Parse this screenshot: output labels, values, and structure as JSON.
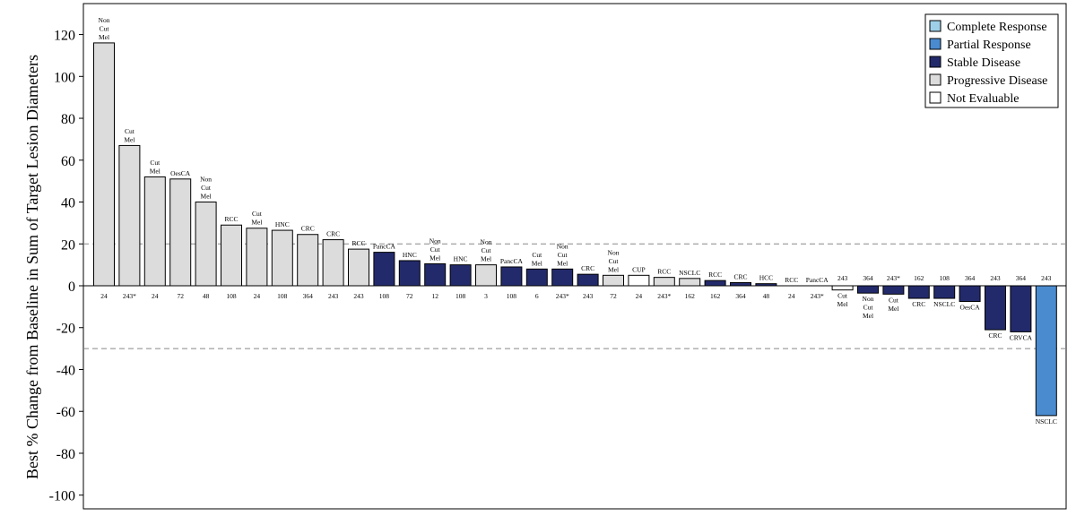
{
  "chart_data": {
    "type": "bar",
    "ylabel": "Best % Change from Baseline in Sum of Target Lesion Diameters",
    "ylim": [
      -105,
      133
    ],
    "yticks": [
      120,
      100,
      80,
      60,
      40,
      20,
      0,
      -20,
      -40,
      -60,
      -80,
      -100
    ],
    "reference_lines": [
      20,
      -30
    ],
    "grid": false,
    "legend_position": "top-right",
    "legend": [
      {
        "key": "CR",
        "label": "Complete Response",
        "color": "#9ecfe8"
      },
      {
        "key": "PR",
        "label": "Partial Response",
        "color": "#4a8bd0"
      },
      {
        "key": "SD",
        "label": "Stable Disease",
        "color": "#232a6b"
      },
      {
        "key": "PD",
        "label": "Progressive Disease",
        "color": "#dcdcdc"
      },
      {
        "key": "NE",
        "label": "Not Evaluable",
        "color": "#ffffff"
      }
    ],
    "bars": [
      {
        "value": 116,
        "dose": "24",
        "tumor": [
          "Non",
          "Cut",
          "Mel"
        ],
        "response": "PD"
      },
      {
        "value": 67,
        "dose": "243*",
        "tumor": [
          "Cut",
          "Mel"
        ],
        "response": "PD"
      },
      {
        "value": 52,
        "dose": "24",
        "tumor": [
          "Cut",
          "Mel"
        ],
        "response": "PD"
      },
      {
        "value": 51,
        "dose": "72",
        "tumor": [
          "OesCA"
        ],
        "response": "PD"
      },
      {
        "value": 40,
        "dose": "48",
        "tumor": [
          "Non",
          "Cut",
          "Mel"
        ],
        "response": "PD"
      },
      {
        "value": 29,
        "dose": "108",
        "tumor": [
          "RCC"
        ],
        "response": "PD"
      },
      {
        "value": 27.5,
        "dose": "24",
        "tumor": [
          "Cut",
          "Mel"
        ],
        "response": "PD"
      },
      {
        "value": 26.5,
        "dose": "108",
        "tumor": [
          "HNC"
        ],
        "response": "PD"
      },
      {
        "value": 24.5,
        "dose": "364",
        "tumor": [
          "CRC"
        ],
        "response": "PD"
      },
      {
        "value": 22,
        "dose": "243",
        "tumor": [
          "CRC"
        ],
        "response": "PD"
      },
      {
        "value": 17.5,
        "dose": "243",
        "tumor": [
          "RCC"
        ],
        "response": "PD"
      },
      {
        "value": 16,
        "dose": "108",
        "tumor": [
          "PancCA"
        ],
        "response": "SD"
      },
      {
        "value": 12,
        "dose": "72",
        "tumor": [
          "HNC"
        ],
        "response": "SD"
      },
      {
        "value": 10.5,
        "dose": "12",
        "tumor": [
          "Non",
          "Cut",
          "Mel"
        ],
        "response": "SD"
      },
      {
        "value": 10,
        "dose": "108",
        "tumor": [
          "HNC"
        ],
        "response": "SD"
      },
      {
        "value": 10,
        "dose": "3",
        "tumor": [
          "Non",
          "Cut",
          "Mel"
        ],
        "response": "PD"
      },
      {
        "value": 9,
        "dose": "108",
        "tumor": [
          "PancCA"
        ],
        "response": "SD"
      },
      {
        "value": 8,
        "dose": "6",
        "tumor": [
          "Cut",
          "Mel"
        ],
        "response": "SD"
      },
      {
        "value": 8,
        "dose": "243*",
        "tumor": [
          "Non",
          "Cut",
          "Mel"
        ],
        "response": "SD"
      },
      {
        "value": 5.5,
        "dose": "243",
        "tumor": [
          "CRC"
        ],
        "response": "SD"
      },
      {
        "value": 5,
        "dose": "72",
        "tumor": [
          "Non",
          "Cut",
          "Mel"
        ],
        "response": "PD"
      },
      {
        "value": 5,
        "dose": "24",
        "tumor": [
          "CUP"
        ],
        "response": "NE"
      },
      {
        "value": 4,
        "dose": "243*",
        "tumor": [
          "RCC"
        ],
        "response": "PD"
      },
      {
        "value": 3.5,
        "dose": "162",
        "tumor": [
          "NSCLC"
        ],
        "response": "PD"
      },
      {
        "value": 2.5,
        "dose": "162",
        "tumor": [
          "RCC"
        ],
        "response": "SD"
      },
      {
        "value": 1.5,
        "dose": "364",
        "tumor": [
          "CRC"
        ],
        "response": "SD"
      },
      {
        "value": 1,
        "dose": "48",
        "tumor": [
          "HCC"
        ],
        "response": "SD"
      },
      {
        "value": 0,
        "dose": "24",
        "tumor": [
          "RCC"
        ],
        "response": "SD"
      },
      {
        "value": 0,
        "dose": "243*",
        "tumor": [
          "PancCA"
        ],
        "response": "SD"
      },
      {
        "value": -2,
        "dose": "243",
        "tumor": [
          "Cut",
          "Mel"
        ],
        "response": "NE"
      },
      {
        "value": -3.5,
        "dose": "364",
        "tumor": [
          "Non",
          "Cut",
          "Mel"
        ],
        "response": "SD"
      },
      {
        "value": -4,
        "dose": "243*",
        "tumor": [
          "Cut",
          "Mel"
        ],
        "response": "SD"
      },
      {
        "value": -6,
        "dose": "162",
        "tumor": [
          "CRC"
        ],
        "response": "SD"
      },
      {
        "value": -6,
        "dose": "108",
        "tumor": [
          "NSCLC"
        ],
        "response": "SD"
      },
      {
        "value": -7.5,
        "dose": "364",
        "tumor": [
          "OesCA"
        ],
        "response": "SD"
      },
      {
        "value": -21,
        "dose": "243",
        "tumor": [
          "CRC"
        ],
        "response": "SD"
      },
      {
        "value": -22,
        "dose": "364",
        "tumor": [
          "CRVCA"
        ],
        "response": "SD"
      },
      {
        "value": -62,
        "dose": "243",
        "tumor": [
          "NSCLC"
        ],
        "response": "PR"
      }
    ]
  }
}
